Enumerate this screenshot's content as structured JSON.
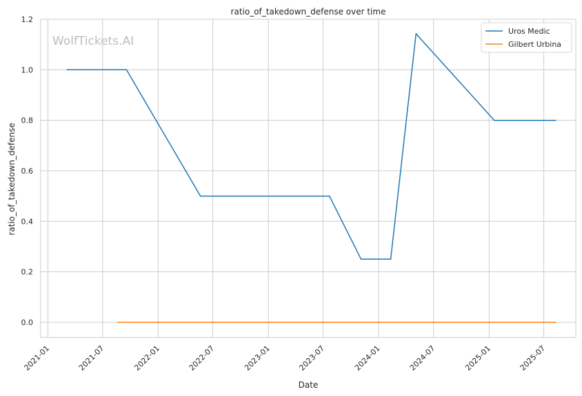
{
  "chart_data": {
    "type": "line",
    "title": "ratio_of_takedown_defense over time",
    "xlabel": "Date",
    "ylabel": "ratio_of_takedown_defense",
    "watermark": "WolfTickets.AI",
    "xlim": [
      "2020-12-08",
      "2025-10-15"
    ],
    "ylim": [
      -0.06,
      1.2
    ],
    "x_ticks": [
      "2021-01",
      "2021-07",
      "2022-01",
      "2022-07",
      "2023-01",
      "2023-07",
      "2024-01",
      "2024-07",
      "2025-01",
      "2025-07"
    ],
    "y_ticks": [
      "0.0",
      "0.2",
      "0.4",
      "0.6",
      "0.8",
      "1.0",
      "1.2"
    ],
    "grid": true,
    "legend_position": "top-right",
    "series": [
      {
        "name": "Uros Medic",
        "color": "#1f77b4",
        "x": [
          "2021-03-06",
          "2021-09-18",
          "2022-05-21",
          "2023-07-22",
          "2023-11-04",
          "2024-02-10",
          "2024-05-04",
          "2025-01-18",
          "2025-08-09"
        ],
        "y": [
          1.0,
          1.0,
          0.5,
          0.5,
          0.25,
          0.25,
          1.1428,
          0.8,
          0.8
        ]
      },
      {
        "name": "Gilbert Urbina",
        "color": "#ff7f0e",
        "x": [
          "2021-08-21",
          "2025-08-09"
        ],
        "y": [
          0.0,
          0.0
        ]
      }
    ]
  }
}
